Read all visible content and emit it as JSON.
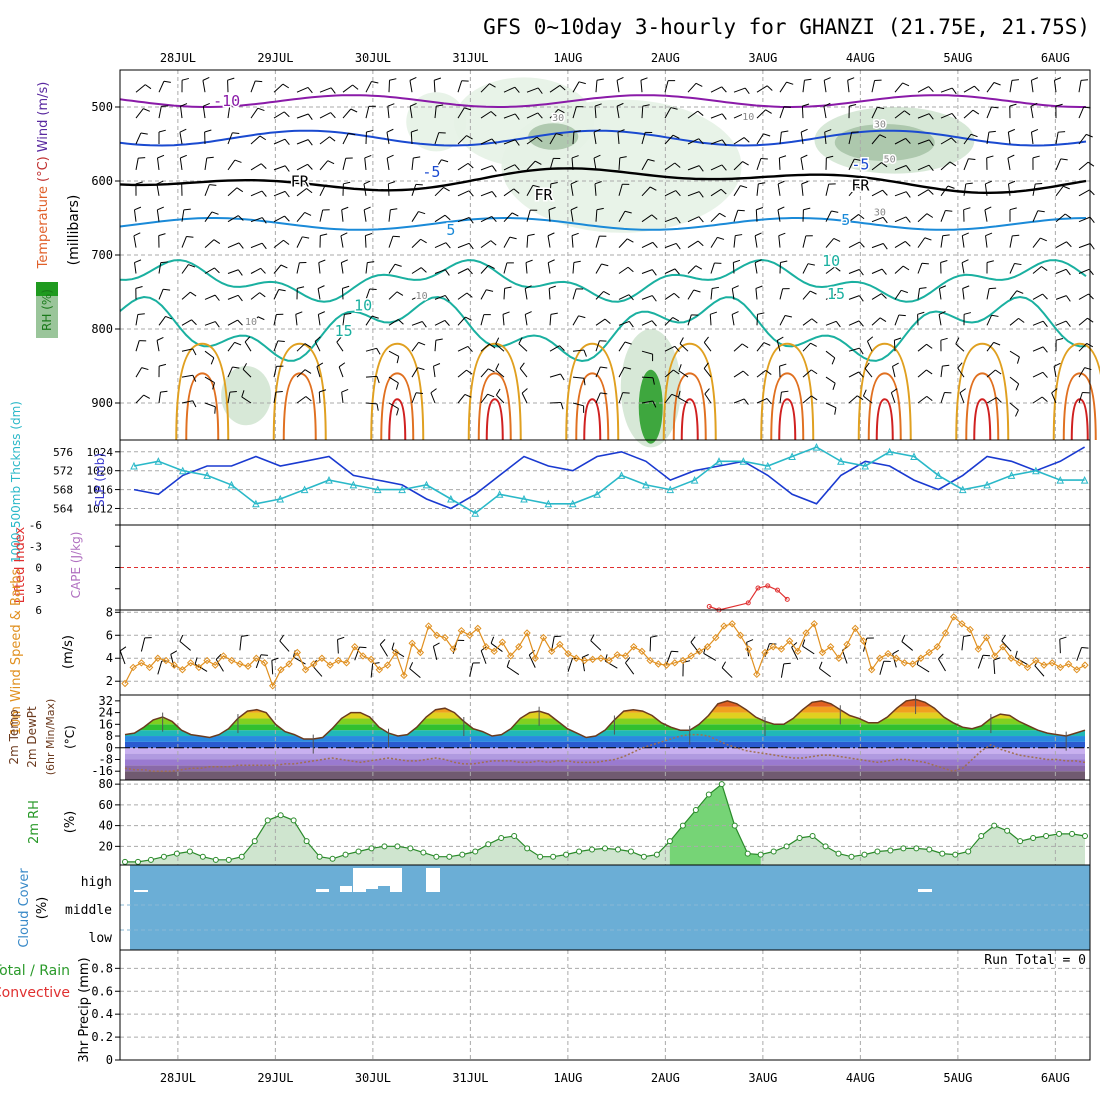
{
  "title": "GFS 0~10day 3-hourly for GHANZI (21.75E, 21.75S)",
  "dates": [
    "28JUL",
    "29JUL",
    "30JUL",
    "31JUL",
    "1AUG",
    "2AUG",
    "3AUG",
    "4AUG",
    "5AUG",
    "6AUG"
  ],
  "colors": {
    "grid": "#aaaaaa",
    "wind_barb": "#000000",
    "cloud": "#6baed6",
    "temp_line": "#6b3a1e",
    "rh_fill": "#5aa85a"
  },
  "chart_data": [
    {
      "type": "contour",
      "panel": "upper-air",
      "ylabel_parts": [
        {
          "text": "RH (%)",
          "color": "#2a9a2a"
        },
        {
          "text": "Temperature",
          "color": "#e0602a"
        },
        {
          "text": "(°C)",
          "color": "#c03030"
        },
        {
          "text": "Wind",
          "color": "#5a2aa0"
        },
        {
          "text": "(m/s)",
          "color": "#5a2aa0"
        }
      ],
      "unit_label": "(millibars)",
      "y_ticks": [
        500,
        600,
        700,
        800,
        900
      ],
      "ylim": [
        950,
        450
      ],
      "contour_labels": [
        {
          "text": "-10",
          "color": "#8a1aa8",
          "x_day": 0.95,
          "p": 492
        },
        {
          "text": "-5",
          "color": "#1a4ad0",
          "x_day": 3.05,
          "p": 588
        },
        {
          "text": "-5",
          "color": "#1a4ad0",
          "x_day": 7.45,
          "p": 578
        },
        {
          "text": "FR",
          "color": "#000000",
          "x_day": 1.7,
          "p": 601
        },
        {
          "text": "FR",
          "color": "#000000",
          "x_day": 4.2,
          "p": 619
        },
        {
          "text": "FR",
          "color": "#000000",
          "x_day": 7.45,
          "p": 606
        },
        {
          "text": "5",
          "color": "#1a8ad8",
          "x_day": 3.25,
          "p": 666
        },
        {
          "text": "5",
          "color": "#1a8ad8",
          "x_day": 7.3,
          "p": 653
        },
        {
          "text": "10",
          "color": "#1ab0a0",
          "x_day": 2.35,
          "p": 768
        },
        {
          "text": "10",
          "color": "#1ab0a0",
          "x_day": 7.15,
          "p": 708
        },
        {
          "text": "15",
          "color": "#1ab0a0",
          "x_day": 2.15,
          "p": 803
        },
        {
          "text": "15",
          "color": "#1ab0a0",
          "x_day": 7.2,
          "p": 753
        },
        {
          "text": "30",
          "color": "#888888",
          "x_day": 4.35,
          "p": 512
        },
        {
          "text": "30",
          "color": "#888888",
          "x_day": 7.65,
          "p": 521
        },
        {
          "text": "30",
          "color": "#888888",
          "x_day": 7.65,
          "p": 640
        },
        {
          "text": "50",
          "color": "#888888",
          "x_day": 7.75,
          "p": 568
        },
        {
          "text": "10",
          "color": "#888888",
          "x_day": 1.2,
          "p": 788
        },
        {
          "text": "10",
          "color": "#888888",
          "x_day": 2.95,
          "p": 753
        },
        {
          "text": "10",
          "color": "#888888",
          "x_day": 6.3,
          "p": 511
        }
      ],
      "isotherms": [
        {
          "temp": -10,
          "color": "#8a1aa8",
          "base": 492,
          "amp": 8
        },
        {
          "temp": -5,
          "color": "#1a4ad0",
          "base": 542,
          "amp": 10
        },
        {
          "temp": 0,
          "color": "#000000",
          "base": 598,
          "amp": 8
        },
        {
          "temp": 5,
          "color": "#1a8ad8",
          "base": 658,
          "amp": 8
        },
        {
          "temp": 10,
          "color": "#1ab0a0",
          "base": 735,
          "amp": 18
        },
        {
          "temp": 15,
          "color": "#1ab0a0",
          "base": 800,
          "amp": 30
        }
      ]
    },
    {
      "type": "line",
      "panel": "thickness-slp",
      "ylabel_left": "1000-500mb Thcknss (dm)",
      "ylabel_right": "SLP (mb)",
      "y_ticks_left": [
        564,
        568,
        572,
        576
      ],
      "y_ticks_right": [
        1012,
        1016,
        1020,
        1024
      ],
      "ylim_slp": [
        1008.5,
        1026.5
      ],
      "x_day": [
        0,
        0.25,
        0.5,
        0.75,
        1.0,
        1.25,
        1.5,
        1.75,
        2.0,
        2.25,
        2.5,
        2.75,
        3.0,
        3.25,
        3.5,
        3.75,
        4.0,
        4.25,
        4.5,
        4.75,
        5.0,
        5.25,
        5.5,
        5.75,
        6.0,
        6.25,
        6.5,
        6.75,
        7.0,
        7.25,
        7.5,
        7.75,
        8.0,
        8.25,
        8.5,
        8.75,
        9.0,
        9.25,
        9.5,
        9.75
      ],
      "series": [
        {
          "name": "SLP",
          "color": "#1a3ad0",
          "values": [
            1016,
            1015,
            1019,
            1021,
            1021,
            1023,
            1021,
            1022,
            1023,
            1019,
            1018,
            1017,
            1014,
            1012,
            1015,
            1019,
            1023,
            1021,
            1020,
            1023,
            1024,
            1022,
            1018,
            1020,
            1021,
            1022,
            1019,
            1015,
            1013,
            1019,
            1022,
            1021,
            1018,
            1016,
            1019,
            1023,
            1022,
            1020,
            1022,
            1025
          ]
        },
        {
          "name": "Thickness",
          "color": "#2ab8c8",
          "values": [
            1021,
            1022,
            1020,
            1019,
            1017,
            1013,
            1014,
            1016,
            1018,
            1017,
            1016,
            1016,
            1017,
            1014,
            1011,
            1015,
            1014,
            1013,
            1013,
            1015,
            1019,
            1017,
            1016,
            1018,
            1022,
            1022,
            1021,
            1023,
            1025,
            1022,
            1021,
            1024,
            1023,
            1019,
            1016,
            1017,
            1019,
            1020,
            1018,
            1018
          ]
        }
      ]
    },
    {
      "type": "line",
      "panel": "stability",
      "ylabel_left": "Lifted Index",
      "ylabel_right": "CAPE (J/kg)",
      "y_ticks": [
        -6,
        -3,
        0,
        3,
        6
      ],
      "ylim": [
        6,
        -6
      ],
      "series": [
        {
          "name": "Lifted Index",
          "color": "#e03030",
          "points": [
            [
              5.9,
              5.5
            ],
            [
              6.0,
              6.0
            ],
            [
              6.3,
              5.0
            ],
            [
              6.4,
              2.9
            ],
            [
              6.5,
              2.6
            ],
            [
              6.6,
              3.2
            ],
            [
              6.7,
              4.5
            ]
          ]
        }
      ]
    },
    {
      "type": "line",
      "panel": "wind10m",
      "ylabel_left": "10m Wind Speed & Barbs",
      "ylabel_unit": "(m/s)",
      "y_ticks": [
        2,
        4,
        6,
        8
      ],
      "ylim": [
        0.8,
        8.2
      ],
      "series": [
        {
          "name": "10m Wind Speed",
          "color": "#e09020",
          "values": [
            1.8,
            3.2,
            3.6,
            3.2,
            4.0,
            3.8,
            3.4,
            3.0,
            3.6,
            3.2,
            3.8,
            3.4,
            4.2,
            3.8,
            3.5,
            3.3,
            4.0,
            3.6,
            1.6,
            3.0,
            3.5,
            4.5,
            3.0,
            3.5,
            4.0,
            3.4,
            3.8,
            3.6,
            5.0,
            4.2,
            3.9,
            3.0,
            3.4,
            4.5,
            2.5,
            5.3,
            4.5,
            6.8,
            6.0,
            5.8,
            4.8,
            6.4,
            6.0,
            6.6,
            5.0,
            4.6,
            5.4,
            4.2,
            5.0,
            6.2,
            4.0,
            5.8,
            4.6,
            5.2,
            4.4,
            4.0,
            3.8,
            3.9,
            4.0,
            3.8,
            4.3,
            4.2,
            5.0,
            4.6,
            3.8,
            3.5,
            3.4,
            3.6,
            3.8,
            4.2,
            4.6,
            5.0,
            5.8,
            6.8,
            7.0,
            6.0,
            4.8,
            2.6,
            4.5,
            5.0,
            4.8,
            5.5,
            4.6,
            6.2,
            7.0,
            4.5,
            5.0,
            4.0,
            5.2,
            6.6,
            5.5,
            3.0,
            4.0,
            4.4,
            4.0,
            3.6,
            3.5,
            4.0,
            4.5,
            5.0,
            6.2,
            7.6,
            7.0,
            6.5,
            4.8,
            5.8,
            4.2,
            5.0,
            4.0,
            3.6,
            3.2,
            3.8,
            3.4,
            3.6,
            3.2,
            3.5,
            3.0,
            3.4
          ]
        }
      ]
    },
    {
      "type": "area",
      "panel": "temperature2m",
      "ylabel_left": "2m Temp 2m DewPt (6hr Min/Max) (°C)",
      "y_ticks": [
        -16,
        -8,
        0,
        8,
        16,
        24,
        32
      ],
      "ylim": [
        -22,
        36
      ],
      "series": [
        {
          "name": "2m Temp",
          "color": "#6b3a1e",
          "values": [
            9,
            10,
            14,
            19,
            21,
            18,
            12,
            9,
            8,
            7,
            9,
            13,
            20,
            25,
            26,
            24,
            16,
            11,
            9,
            6,
            6,
            7,
            13,
            20,
            24,
            24,
            21,
            14,
            10,
            8,
            9,
            14,
            21,
            26,
            27,
            24,
            18,
            13,
            11,
            8,
            9,
            13,
            20,
            24,
            25,
            23,
            18,
            13,
            10,
            7,
            8,
            12,
            19,
            25,
            26,
            25,
            22,
            17,
            14,
            12,
            12,
            16,
            22,
            30,
            32,
            30,
            26,
            21,
            18,
            16,
            16,
            20,
            26,
            31,
            32,
            30,
            26,
            22,
            20,
            17,
            17,
            21,
            27,
            32,
            33,
            31,
            27,
            21,
            17,
            14,
            13,
            15,
            20,
            23,
            22,
            18,
            15,
            12,
            10,
            9,
            8,
            10,
            12
          ]
        },
        {
          "name": "2m DewPt",
          "color": "#6b3a1e",
          "values": [
            -14,
            -15,
            -15,
            -16,
            -16,
            -16,
            -15,
            -14,
            -14,
            -13,
            -13,
            -13,
            -12,
            -12,
            -12,
            -12,
            -12,
            -11,
            -11,
            -10,
            -9,
            -8,
            -7,
            -8,
            -9,
            -10,
            -9,
            -8,
            -7,
            -8,
            -9,
            -9,
            -8,
            -7,
            -8,
            -10,
            -11,
            -11,
            -10,
            -9,
            -9,
            -9,
            -10,
            -10,
            -9,
            -10,
            -9,
            -9,
            -10,
            -10,
            -10,
            -9,
            -8,
            -6,
            -3,
            0,
            2,
            4,
            6,
            8,
            9,
            9,
            8,
            5,
            2,
            0,
            -2,
            -3,
            -4,
            -5,
            -6,
            -7,
            -7,
            -6,
            -5,
            -5,
            -6,
            -7,
            -8,
            -9,
            -10,
            -9,
            -8,
            -8,
            -9,
            -10,
            -12,
            -14,
            -16,
            -14,
            -8,
            -2,
            2,
            -1,
            -3,
            -5,
            -6,
            -7,
            -8,
            -8,
            -9,
            -9,
            -10
          ]
        }
      ]
    },
    {
      "type": "area",
      "panel": "rh2m",
      "ylabel_left": "2m RH",
      "ylabel_unit": "(%)",
      "y_ticks": [
        20,
        40,
        60,
        80
      ],
      "ylim": [
        2,
        84
      ],
      "series": [
        {
          "name": "2m RH",
          "color": "#2a8a2a",
          "values": [
            5,
            5,
            7,
            10,
            13,
            15,
            10,
            7,
            7,
            10,
            25,
            45,
            50,
            45,
            25,
            10,
            8,
            12,
            15,
            18,
            20,
            20,
            18,
            14,
            10,
            10,
            12,
            15,
            22,
            28,
            30,
            18,
            10,
            10,
            12,
            15,
            17,
            18,
            17,
            15,
            10,
            12,
            25,
            40,
            55,
            70,
            80,
            40,
            13,
            12,
            15,
            20,
            28,
            30,
            20,
            13,
            10,
            12,
            15,
            16,
            18,
            18,
            17,
            13,
            12,
            15,
            30,
            40,
            35,
            25,
            28,
            30,
            32,
            32,
            30
          ]
        }
      ]
    },
    {
      "type": "bar",
      "panel": "cloud",
      "ylabel_left": "Cloud Cover",
      "ylabel_unit": "(%)",
      "levels": [
        "high",
        "middle",
        "low"
      ]
    },
    {
      "type": "bar",
      "panel": "precip",
      "ylabel_left": "3hr Precip (mm)",
      "ylabel_parts": [
        {
          "text": "Total / Rain",
          "color": "#2a9a2a"
        },
        {
          "text": "Convective",
          "color": "#e03030"
        }
      ],
      "y_ticks": [
        "0",
        "0.2",
        "0.4",
        "0.6",
        "0.8"
      ],
      "ylim": [
        0,
        0.96
      ],
      "run_total": "Run Total = 0",
      "values": []
    }
  ]
}
